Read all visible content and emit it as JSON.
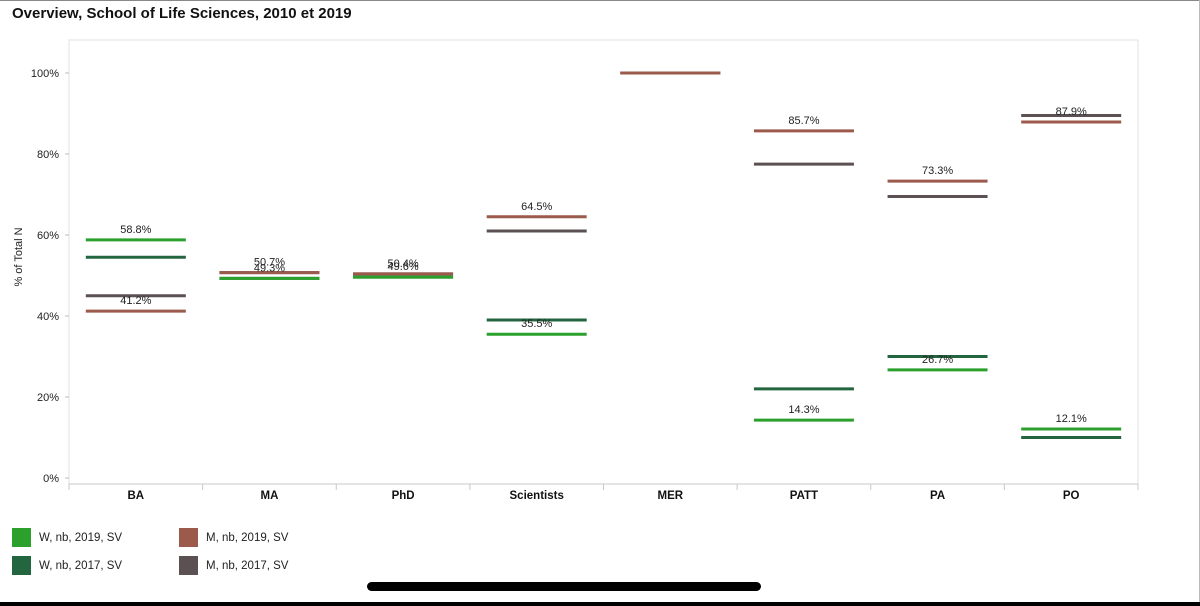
{
  "title": "Overview, School of Life Sciences, 2010 et 2019",
  "colors": {
    "w2019": "#2ca02c",
    "w2017": "#23653f",
    "m2019": "#9b5a4c",
    "m2017": "#5b5052"
  },
  "chart_data": {
    "type": "line",
    "title": "Overview, School of Life Sciences, 2010 et 2019",
    "ylabel": "% of Total N",
    "xlabel": "",
    "ylim": [
      0,
      100
    ],
    "yticks": [
      "0%",
      "20%",
      "40%",
      "60%",
      "80%",
      "100%"
    ],
    "categories": [
      "BA",
      "MA",
      "PhD",
      "Scientists",
      "MER",
      "PATT",
      "PA",
      "PO"
    ],
    "grid": false,
    "legend": "bottom-left",
    "series": [
      {
        "name": "W, nb, 2019, SV",
        "color": "#2ca02c",
        "values": [
          58.8,
          49.3,
          49.6,
          35.5,
          null,
          14.3,
          26.7,
          12.1
        ],
        "labels": [
          "58.8%",
          "49.3%",
          "49.6%",
          "35.5%",
          "",
          "14.3%",
          "26.7%",
          "12.1%"
        ]
      },
      {
        "name": "W, nb, 2017, SV",
        "color": "#23653f",
        "values": [
          54.5,
          49.3,
          49.6,
          39.0,
          null,
          22.0,
          30.0,
          10.0
        ],
        "labels": [
          "",
          "",
          "",
          "",
          "",
          "",
          "",
          ""
        ]
      },
      {
        "name": "M, nb, 2019, SV",
        "color": "#9b5a4c",
        "values": [
          41.2,
          50.7,
          50.4,
          64.5,
          100.0,
          85.7,
          73.3,
          87.9
        ],
        "labels": [
          "41.2%",
          "50.7%",
          "50.4%",
          "64.5%",
          "",
          "85.7%",
          "73.3%",
          "87.9%"
        ]
      },
      {
        "name": "M, nb, 2017, SV",
        "color": "#5b5052",
        "values": [
          45.0,
          50.7,
          50.4,
          61.0,
          100.0,
          77.5,
          69.5,
          89.5
        ],
        "labels": [
          "",
          "",
          "",
          "",
          "",
          "",
          "",
          ""
        ]
      }
    ]
  }
}
